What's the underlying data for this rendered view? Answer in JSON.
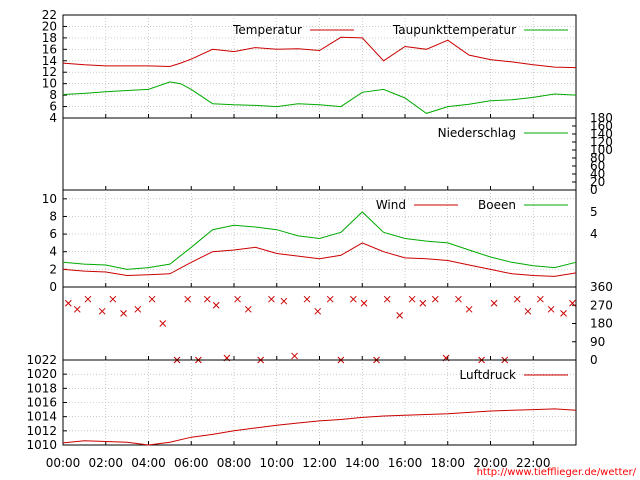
{
  "chart_data": [
    {
      "type": "line",
      "title": "",
      "ylim": [
        4,
        22
      ],
      "y_ticks": [
        "4",
        "6",
        "8",
        "10",
        "12",
        "14",
        "16",
        "18",
        "20",
        "22"
      ],
      "legend_position": "top-right",
      "grid": true,
      "series": [
        {
          "name": "Temperatur",
          "color": "#cc0000",
          "x": [
            "00:00",
            "01:00",
            "02:00",
            "03:00",
            "04:00",
            "05:00",
            "05:30",
            "06:00",
            "07:00",
            "08:00",
            "09:00",
            "10:00",
            "11:00",
            "12:00",
            "13:00",
            "14:00",
            "15:00",
            "16:00",
            "17:00",
            "18:00",
            "19:00",
            "20:00",
            "21:00",
            "22:00",
            "23:00",
            "24:00"
          ],
          "y": [
            13.6,
            13.3,
            13.1,
            13.1,
            13.1,
            13.0,
            13.6,
            14.3,
            16.0,
            15.6,
            16.3,
            16.0,
            16.1,
            15.8,
            18.1,
            18.0,
            14.0,
            16.5,
            16.0,
            17.6,
            15.0,
            14.2,
            13.8,
            13.3,
            12.9,
            12.8
          ]
        },
        {
          "name": "Taupunkttemperatur",
          "color": "#00aa00",
          "x": [
            "00:00",
            "01:00",
            "02:00",
            "03:00",
            "04:00",
            "05:00",
            "05:30",
            "06:00",
            "07:00",
            "08:00",
            "09:00",
            "10:00",
            "11:00",
            "12:00",
            "13:00",
            "14:00",
            "15:00",
            "16:00",
            "17:00",
            "18:00",
            "19:00",
            "20:00",
            "21:00",
            "22:00",
            "23:00",
            "24:00"
          ],
          "y": [
            8.1,
            8.3,
            8.6,
            8.8,
            9.0,
            10.3,
            10.0,
            9.0,
            6.5,
            6.3,
            6.2,
            6.0,
            6.5,
            6.3,
            6.0,
            8.5,
            9.0,
            7.5,
            4.8,
            6.0,
            6.4,
            7.0,
            7.2,
            7.6,
            8.2,
            8.0
          ]
        }
      ]
    },
    {
      "type": "line",
      "title": "",
      "ylim": [
        0,
        180
      ],
      "y_ticks": [
        "0",
        "20",
        "40",
        "60",
        "80",
        "100",
        "120",
        "140",
        "160",
        "180"
      ],
      "legend_position": "top-right",
      "series": [
        {
          "name": "Niederschlag",
          "color": "#00aa00",
          "x": [
            "00:00",
            "24:00"
          ],
          "y": [
            0,
            0
          ]
        }
      ]
    },
    {
      "type": "line",
      "title": "",
      "ylim": [
        0,
        11
      ],
      "y_ticks": [
        "0",
        "2",
        "4",
        "6",
        "8",
        "10"
      ],
      "y2_ticks": [
        "4",
        "5"
      ],
      "legend_position": "top-right",
      "grid": true,
      "series": [
        {
          "name": "Wind",
          "color": "#cc0000",
          "x": [
            "00:00",
            "01:00",
            "02:00",
            "03:00",
            "04:00",
            "05:00",
            "06:00",
            "07:00",
            "08:00",
            "09:00",
            "10:00",
            "11:00",
            "12:00",
            "13:00",
            "14:00",
            "15:00",
            "16:00",
            "17:00",
            "18:00",
            "19:00",
            "20:00",
            "21:00",
            "22:00",
            "23:00",
            "24:00"
          ],
          "y": [
            2.0,
            1.8,
            1.7,
            1.3,
            1.4,
            1.5,
            2.8,
            4.0,
            4.2,
            4.5,
            3.8,
            3.5,
            3.2,
            3.6,
            5.0,
            4.0,
            3.3,
            3.2,
            3.0,
            2.5,
            2.0,
            1.5,
            1.3,
            1.2,
            1.6
          ]
        },
        {
          "name": "Boeen",
          "color": "#00aa00",
          "x": [
            "00:00",
            "01:00",
            "02:00",
            "03:00",
            "04:00",
            "05:00",
            "06:00",
            "07:00",
            "08:00",
            "09:00",
            "10:00",
            "11:00",
            "12:00",
            "13:00",
            "14:00",
            "15:00",
            "16:00",
            "17:00",
            "18:00",
            "19:00",
            "20:00",
            "21:00",
            "22:00",
            "23:00",
            "24:00"
          ],
          "y": [
            2.8,
            2.6,
            2.5,
            2.0,
            2.2,
            2.6,
            4.5,
            6.5,
            7.0,
            6.8,
            6.5,
            5.8,
            5.5,
            6.2,
            8.5,
            6.2,
            5.5,
            5.2,
            5.0,
            4.2,
            3.4,
            2.8,
            2.4,
            2.2,
            2.8
          ]
        }
      ]
    },
    {
      "type": "scatter",
      "title": "",
      "ylim": [
        0,
        360
      ],
      "y_ticks": [
        "0",
        "90",
        "180",
        "270",
        "360"
      ],
      "series": [
        {
          "name": "",
          "color": "#cc0000",
          "x": [
            "00:15",
            "00:40",
            "01:10",
            "01:50",
            "02:20",
            "02:50",
            "03:30",
            "04:10",
            "04:40",
            "05:20",
            "05:50",
            "06:20",
            "06:45",
            "07:10",
            "07:40",
            "08:10",
            "08:40",
            "09:15",
            "09:45",
            "10:20",
            "10:50",
            "11:25",
            "11:55",
            "12:30",
            "13:00",
            "13:35",
            "14:05",
            "14:40",
            "15:10",
            "15:45",
            "16:20",
            "16:50",
            "17:25",
            "17:55",
            "18:30",
            "19:00",
            "19:35",
            "20:10",
            "20:40",
            "21:15",
            "21:45",
            "22:20",
            "22:50",
            "23:25",
            "23:50"
          ],
          "y": [
            280,
            250,
            300,
            240,
            300,
            230,
            250,
            300,
            180,
            0,
            300,
            0,
            300,
            270,
            10,
            300,
            250,
            0,
            300,
            290,
            20,
            300,
            240,
            300,
            0,
            300,
            280,
            0,
            300,
            220,
            300,
            280,
            300,
            10,
            300,
            250,
            0,
            280,
            0,
            300,
            240,
            300,
            250,
            230,
            280
          ]
        }
      ]
    },
    {
      "type": "line",
      "title": "",
      "ylim": [
        1010,
        1022
      ],
      "y_ticks": [
        "1010",
        "1012",
        "1014",
        "1016",
        "1018",
        "1020",
        "1022"
      ],
      "legend_position": "top-right",
      "grid": true,
      "series": [
        {
          "name": "Luftdruck",
          "color": "#cc0000",
          "x": [
            "00:00",
            "01:00",
            "02:00",
            "03:00",
            "04:00",
            "05:00",
            "06:00",
            "07:00",
            "08:00",
            "09:00",
            "10:00",
            "11:00",
            "12:00",
            "13:00",
            "14:00",
            "15:00",
            "16:00",
            "17:00",
            "18:00",
            "19:00",
            "20:00",
            "21:00",
            "22:00",
            "23:00",
            "24:00"
          ],
          "y": [
            1010.3,
            1010.6,
            1010.5,
            1010.4,
            1010.0,
            1010.4,
            1011.1,
            1011.5,
            1012.0,
            1012.4,
            1012.8,
            1013.1,
            1013.4,
            1013.6,
            1013.9,
            1014.1,
            1014.2,
            1014.3,
            1014.4,
            1014.6,
            1014.8,
            1014.9,
            1015.0,
            1015.1,
            1014.9
          ]
        }
      ]
    }
  ],
  "x_axis": {
    "tick_labels": [
      "00:00",
      "02:00",
      "04:00",
      "06:00",
      "08:00",
      "10:00",
      "12:00",
      "14:00",
      "16:00",
      "18:00",
      "20:00",
      "22:00"
    ]
  },
  "footer": {
    "url": "http://www.tiefflieger.de/wetter/",
    "color": "#ff0000"
  }
}
